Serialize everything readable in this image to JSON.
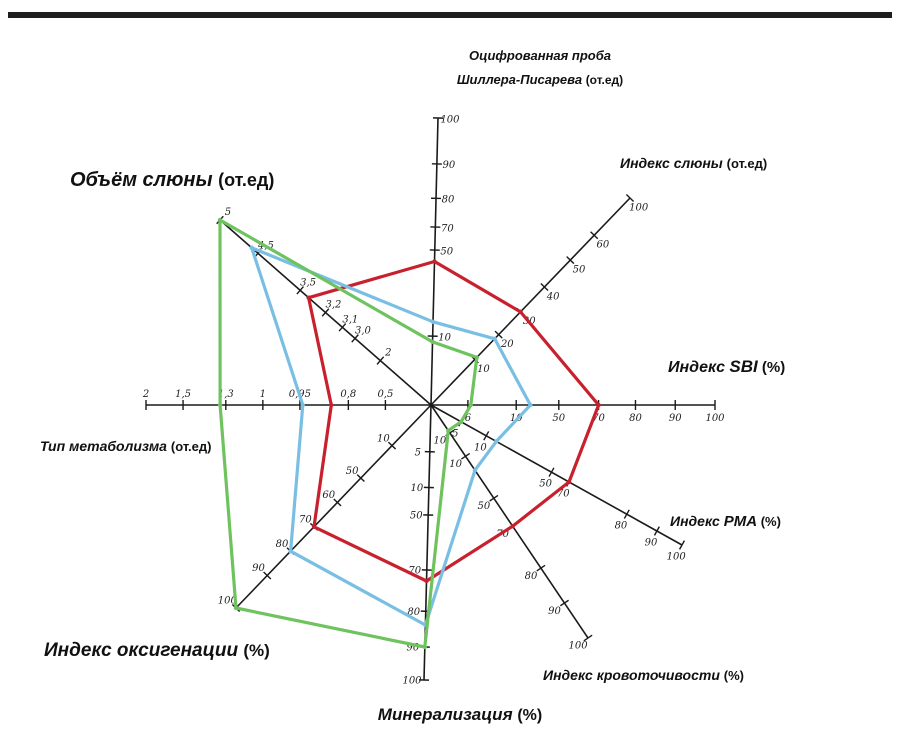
{
  "chart_data": {
    "type": "radar",
    "axes": [
      {
        "key": "shiller",
        "title_lines": [
          [
            {
              "t": "Оцифрованная проба",
              "c": "base"
            }
          ],
          [
            {
              "t": "Шиллера-Писарева ",
              "c": "base"
            },
            {
              "t": "(от.ед)",
              "c": "unit"
            }
          ]
        ],
        "ticks": [
          "10",
          "50",
          "70",
          "80",
          "90",
          "100"
        ]
      },
      {
        "key": "saliva_index",
        "title_lines": [
          [
            {
              "t": "Индекс слюны ",
              "c": "base"
            },
            {
              "t": "(от.ед)",
              "c": "unit"
            }
          ]
        ],
        "ticks": [
          "10",
          "20",
          "30",
          "40",
          "50",
          "60",
          "100"
        ]
      },
      {
        "key": "sbi",
        "title_lines": [
          [
            {
              "t": "Индекс ",
              "c": "base"
            },
            {
              "t": "SBI",
              "c": "em"
            },
            {
              "t": " (%)",
              "c": "unit"
            }
          ]
        ],
        "ticks": [
          "6",
          "10",
          "50",
          "70",
          "80",
          "90",
          "100"
        ]
      },
      {
        "key": "pma",
        "title_lines": [
          [
            {
              "t": "Индекс ",
              "c": "base"
            },
            {
              "t": "PMA",
              "c": "em"
            },
            {
              "t": " (%)",
              "c": "unit"
            }
          ]
        ],
        "ticks": [
          "5",
          "10",
          "50",
          "70",
          "80",
          "90",
          "100"
        ]
      },
      {
        "key": "bleeding",
        "title_lines": [
          [
            {
              "t": "Индекс кровоточивости ",
              "c": "base"
            },
            {
              "t": "(%)",
              "c": "unit"
            }
          ]
        ],
        "ticks": [
          "10",
          "10",
          "50",
          "70",
          "80",
          "90",
          "100"
        ]
      },
      {
        "key": "mineralization",
        "title_lines": [
          [
            {
              "t": "Минерализация ",
              "c": "base"
            },
            {
              "t": "(%)",
              "c": "unit"
            }
          ]
        ],
        "ticks": [
          "5",
          "10",
          "50",
          "70",
          "80",
          "90",
          "100"
        ]
      },
      {
        "key": "oxygenation",
        "title_lines": [
          [
            {
              "t": "Индекс оксигенации ",
              "c": "base"
            },
            {
              "t": "(%)",
              "c": "unit"
            }
          ]
        ],
        "ticks": [
          "10",
          "50",
          "60",
          "70",
          "80",
          "90",
          "100"
        ]
      },
      {
        "key": "metabolism",
        "title_lines": [
          [
            {
              "t": "Тип метаболизма ",
              "c": "base"
            },
            {
              "t": "(от.ед)",
              "c": "unit"
            }
          ]
        ],
        "ticks": [
          "0,5",
          "0,8",
          "0,95",
          "1",
          "1,3",
          "1,5",
          "2"
        ]
      },
      {
        "key": "saliva_volume",
        "title_lines": [
          [
            {
              "t": "Объём слюны ",
              "c": "base"
            },
            {
              "t": "(от.ед)",
              "c": "unit"
            }
          ]
        ],
        "ticks": [
          "2",
          "3,0",
          "3,1",
          "3,2",
          "3,5",
          "4,5",
          "5"
        ]
      }
    ],
    "series": [
      {
        "color": "#c8202c",
        "values": [
          0.5,
          0.45,
          0.59,
          0.55,
          0.52,
          0.64,
          0.6,
          0.35,
          0.58
        ]
      },
      {
        "color": "#79bfe3",
        "values": [
          0.29,
          0.32,
          0.35,
          0.26,
          0.28,
          0.8,
          0.72,
          0.45,
          0.85
        ]
      },
      {
        "color": "#6fc35e",
        "values": [
          0.22,
          0.23,
          0.14,
          0.12,
          0.11,
          0.88,
          1.0,
          0.74,
          1.0
        ]
      }
    ]
  }
}
